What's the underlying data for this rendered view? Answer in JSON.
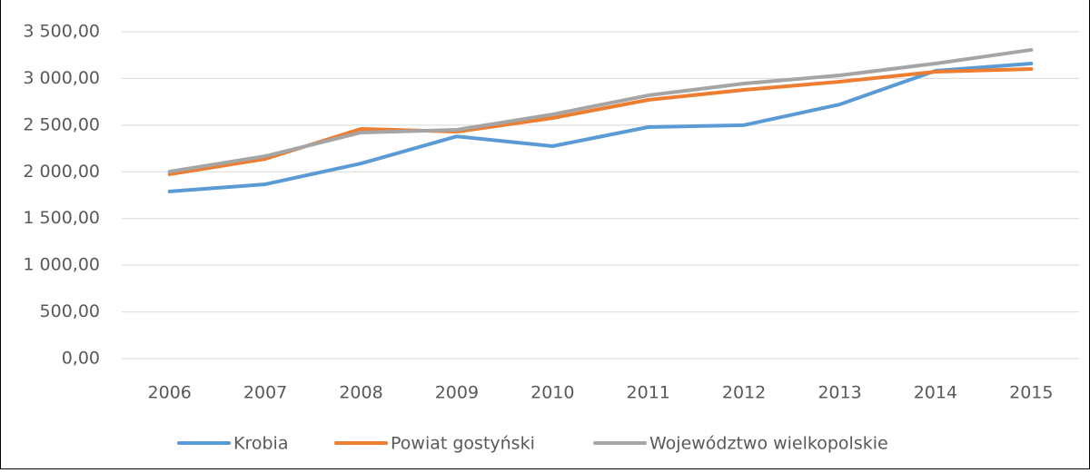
{
  "chart_data": {
    "type": "line",
    "categories": [
      "2006",
      "2007",
      "2008",
      "2009",
      "2010",
      "2011",
      "2012",
      "2013",
      "2014",
      "2015"
    ],
    "series": [
      {
        "name": "Krobia",
        "color": "#5b9bd5",
        "values": [
          1790,
          1867,
          2090,
          2380,
          2275,
          2479,
          2500,
          2722,
          3082,
          3160
        ]
      },
      {
        "name": "Powiat gostyński",
        "color": "#ed7d31",
        "values": [
          1974,
          2139,
          2460,
          2430,
          2576,
          2771,
          2878,
          2965,
          3072,
          3101
        ]
      },
      {
        "name": "Województwo wielkopolskie",
        "color": "#a5a5a5",
        "values": [
          2003,
          2168,
          2421,
          2450,
          2615,
          2819,
          2946,
          3033,
          3160,
          3306
        ]
      }
    ],
    "ylim": [
      0,
      3500
    ],
    "yticks": [
      {
        "value": 0,
        "label": "0,00"
      },
      {
        "value": 500,
        "label": "500,00"
      },
      {
        "value": 1000,
        "label": "1 000,00"
      },
      {
        "value": 1500,
        "label": "1 500,00"
      },
      {
        "value": 2000,
        "label": "2 000,00"
      },
      {
        "value": 2500,
        "label": "2 500,00"
      },
      {
        "value": 3000,
        "label": "3 000,00"
      },
      {
        "value": 3500,
        "label": "3 500,00"
      }
    ],
    "grid": true,
    "legend": "bottom"
  }
}
